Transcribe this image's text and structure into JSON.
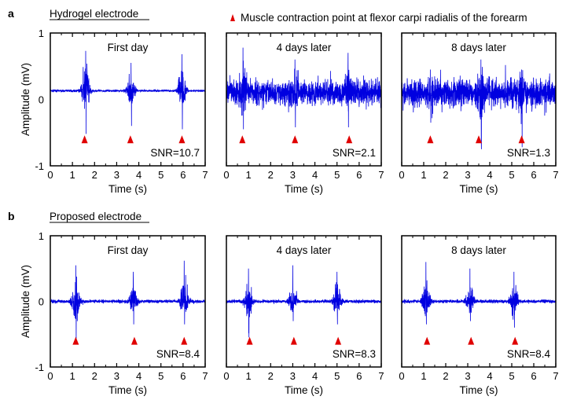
{
  "legend": {
    "marker_color": "#e00000",
    "label": "Muscle contraction point at flexor carpi radialis of the forearm",
    "placement": "top"
  },
  "chart_data": [
    {
      "row": "a",
      "row_title": "Hydrogel electrode",
      "panels": [
        {
          "type": "line",
          "title": "First day",
          "xlabel": "Time (s)",
          "ylabel": "Amplitude (mV)",
          "xlim": [
            0,
            7
          ],
          "ylim": [
            -1,
            1
          ],
          "xticks": [
            0,
            1,
            2,
            3,
            4,
            5,
            6,
            7
          ],
          "yticks": [
            -1,
            0,
            1
          ],
          "color": "#0000e0",
          "baseline": 0.13,
          "noise": 0.015,
          "bursts": [
            {
              "t": 1.6,
              "max": 0.73,
              "min": -0.52
            },
            {
              "t": 3.65,
              "max": 0.55,
              "min": -0.4
            },
            {
              "t": 5.95,
              "max": 0.68,
              "min": -0.45
            }
          ],
          "markers": [
            1.55,
            3.62,
            5.95
          ],
          "marker_y": -0.6,
          "snr": "SNR=10.7"
        },
        {
          "type": "line",
          "title": "4 days later",
          "xlabel": "Time (s)",
          "xlim": [
            0,
            7
          ],
          "ylim": [
            -1,
            1
          ],
          "xticks": [
            0,
            1,
            2,
            3,
            4,
            5,
            6,
            7
          ],
          "color": "#0000e0",
          "baseline": 0.1,
          "noise": 0.17,
          "bursts": [
            {
              "t": 0.75,
              "max": 0.78,
              "min": -0.45
            },
            {
              "t": 3.1,
              "max": 0.6,
              "min": -0.42
            },
            {
              "t": 5.5,
              "max": 0.7,
              "min": -0.42
            }
          ],
          "markers": [
            0.72,
            3.1,
            5.55
          ],
          "marker_y": -0.6,
          "snr": "SNR=2.1"
        },
        {
          "type": "line",
          "title": "8 days later",
          "xlabel": "Time (s)",
          "xlim": [
            0,
            7
          ],
          "ylim": [
            -1,
            1
          ],
          "xticks": [
            0,
            1,
            2,
            3,
            4,
            5,
            6,
            7
          ],
          "color": "#0000e0",
          "baseline": 0.1,
          "noise": 0.2,
          "bursts": [
            {
              "t": 1.3,
              "max": 0.45,
              "min": -0.35
            },
            {
              "t": 3.6,
              "max": 0.6,
              "min": -0.75
            },
            {
              "t": 5.45,
              "max": 0.45,
              "min": -0.72
            }
          ],
          "markers": [
            1.3,
            3.5,
            5.45
          ],
          "marker_y": -0.6,
          "snr": "SNR=1.3"
        }
      ]
    },
    {
      "row": "b",
      "row_title": "Proposed electrode",
      "panels": [
        {
          "type": "line",
          "title": "First day",
          "xlabel": "Time (s)",
          "ylabel": "Amplitude (mV)",
          "xlim": [
            0,
            7
          ],
          "ylim": [
            -1,
            1
          ],
          "xticks": [
            0,
            1,
            2,
            3,
            4,
            5,
            6,
            7
          ],
          "yticks": [
            -1,
            0,
            1
          ],
          "color": "#0000e0",
          "baseline": 0.0,
          "noise": 0.025,
          "bursts": [
            {
              "t": 1.15,
              "max": 0.55,
              "min": -0.6
            },
            {
              "t": 3.75,
              "max": 0.45,
              "min": -0.35
            },
            {
              "t": 6.05,
              "max": 0.62,
              "min": -0.35
            }
          ],
          "markers": [
            1.15,
            3.8,
            6.05
          ],
          "marker_y": -0.6,
          "snr": "SNR=8.4"
        },
        {
          "type": "line",
          "title": "4 days later",
          "xlabel": "Time (s)",
          "xlim": [
            0,
            7
          ],
          "ylim": [
            -1,
            1
          ],
          "xticks": [
            0,
            1,
            2,
            3,
            4,
            5,
            6,
            7
          ],
          "color": "#0000e0",
          "baseline": 0.0,
          "noise": 0.025,
          "bursts": [
            {
              "t": 1.0,
              "max": 0.5,
              "min": -0.55
            },
            {
              "t": 3.0,
              "max": 0.55,
              "min": -0.3
            },
            {
              "t": 5.0,
              "max": 0.45,
              "min": -0.35
            }
          ],
          "markers": [
            1.05,
            3.05,
            5.05
          ],
          "marker_y": -0.6,
          "snr": "SNR=8.3"
        },
        {
          "type": "line",
          "title": "8 days later",
          "xlabel": "Time (s)",
          "xlim": [
            0,
            7
          ],
          "ylim": [
            -1,
            1
          ],
          "xticks": [
            0,
            1,
            2,
            3,
            4,
            5,
            6,
            7
          ],
          "color": "#0000e0",
          "baseline": 0.0,
          "noise": 0.025,
          "bursts": [
            {
              "t": 1.1,
              "max": 0.6,
              "min": -0.35
            },
            {
              "t": 3.1,
              "max": 0.5,
              "min": -0.3
            },
            {
              "t": 5.1,
              "max": 0.45,
              "min": -0.4
            }
          ],
          "markers": [
            1.15,
            3.15,
            5.15
          ],
          "marker_y": -0.6,
          "snr": "SNR=8.4"
        }
      ]
    }
  ]
}
